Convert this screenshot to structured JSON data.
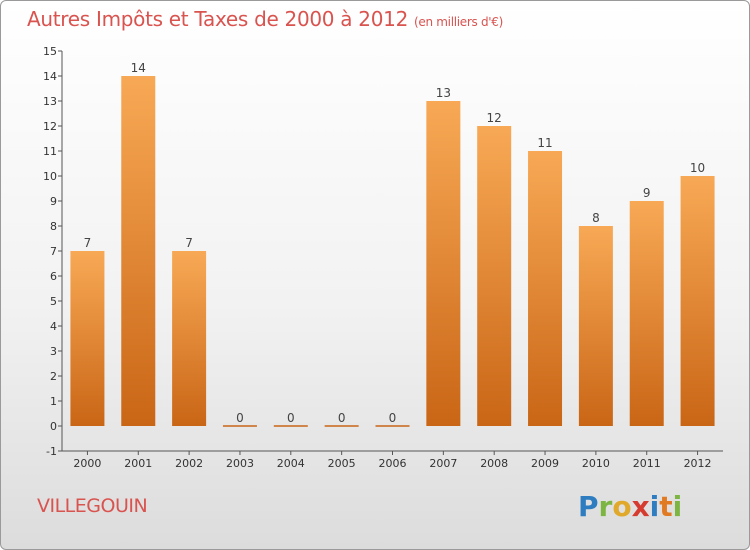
{
  "header": {
    "title": "Autres Impôts et Taxes de 2000 à 2012",
    "subtitle": "(en milliers d'€)"
  },
  "footer": {
    "commune": "VILLEGOUIN",
    "logo_text": "Proxiti"
  },
  "colors": {
    "bar_light": "#f8a955",
    "bar_dark": "#c96616",
    "title": "#d9534f"
  },
  "chart_data": {
    "type": "bar",
    "title": "Autres Impôts et Taxes de 2000 à 2012",
    "subtitle": "(en milliers d'€)",
    "categories": [
      "2000",
      "2001",
      "2002",
      "2003",
      "2004",
      "2005",
      "2006",
      "2007",
      "2008",
      "2009",
      "2010",
      "2011",
      "2012"
    ],
    "values": [
      7,
      14,
      7,
      0,
      0,
      0,
      0,
      13,
      12,
      11,
      8,
      9,
      10
    ],
    "ylim": [
      -1,
      15
    ],
    "yticks": [
      -1,
      0,
      1,
      2,
      3,
      4,
      5,
      6,
      7,
      8,
      9,
      10,
      11,
      12,
      13,
      14,
      15
    ],
    "grid": false,
    "xlabel": "",
    "ylabel": ""
  }
}
